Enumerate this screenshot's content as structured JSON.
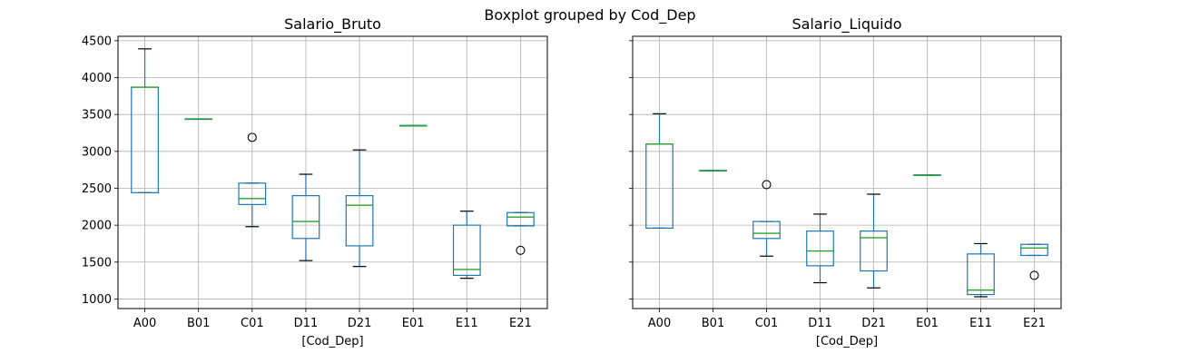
{
  "chart_data": {
    "type": "boxplot",
    "suptitle": "Boxplot grouped by Cod_Dep",
    "categories": [
      "A00",
      "B01",
      "C01",
      "D11",
      "D21",
      "E01",
      "E11",
      "E21"
    ],
    "ylim": [
      870,
      4560
    ],
    "yticks": [
      1000,
      1500,
      2000,
      2500,
      3000,
      3500,
      4000,
      4500
    ],
    "grid": true,
    "colors": {
      "box": "#1f77b4",
      "median": "#2ca02c",
      "whisker": "#1f77b4",
      "cap": "#000000",
      "flier": "#000000",
      "grid": "#b0b0b0"
    },
    "panels": [
      {
        "title": "Salario_Bruto",
        "xlabel": "[Cod_Dep]",
        "boxes": [
          {
            "category": "A00",
            "whislo": 2440,
            "q1": 2440,
            "med": 3870,
            "q3": 3870,
            "whishi": 4390,
            "fliers": []
          },
          {
            "category": "B01",
            "whislo": 3440,
            "q1": 3440,
            "med": 3440,
            "q3": 3440,
            "whishi": 3440,
            "fliers": []
          },
          {
            "category": "C01",
            "whislo": 1980,
            "q1": 2280,
            "med": 2360,
            "q3": 2570,
            "whishi": 2570,
            "fliers": [
              3190
            ]
          },
          {
            "category": "D11",
            "whislo": 1520,
            "q1": 1820,
            "med": 2050,
            "q3": 2400,
            "whishi": 2690,
            "fliers": []
          },
          {
            "category": "D21",
            "whislo": 1440,
            "q1": 1720,
            "med": 2270,
            "q3": 2400,
            "whishi": 3020,
            "fliers": []
          },
          {
            "category": "E01",
            "whislo": 3350,
            "q1": 3350,
            "med": 3350,
            "q3": 3350,
            "whishi": 3350,
            "fliers": []
          },
          {
            "category": "E11",
            "whislo": 1280,
            "q1": 1320,
            "med": 1400,
            "q3": 2000,
            "whishi": 2190,
            "fliers": []
          },
          {
            "category": "E21",
            "whislo": 1990,
            "q1": 1990,
            "med": 2110,
            "q3": 2170,
            "whishi": 2170,
            "fliers": [
              1660
            ]
          }
        ]
      },
      {
        "title": "Salario_Liquido",
        "xlabel": "[Cod_Dep]",
        "boxes": [
          {
            "category": "A00",
            "whislo": 1960,
            "q1": 1960,
            "med": 3100,
            "q3": 3100,
            "whishi": 3510,
            "fliers": []
          },
          {
            "category": "B01",
            "whislo": 2740,
            "q1": 2740,
            "med": 2740,
            "q3": 2740,
            "whishi": 2740,
            "fliers": []
          },
          {
            "category": "C01",
            "whislo": 1580,
            "q1": 1820,
            "med": 1890,
            "q3": 2050,
            "whishi": 2050,
            "fliers": [
              2550
            ]
          },
          {
            "category": "D11",
            "whislo": 1220,
            "q1": 1450,
            "med": 1650,
            "q3": 1920,
            "whishi": 2150,
            "fliers": []
          },
          {
            "category": "D21",
            "whislo": 1150,
            "q1": 1380,
            "med": 1830,
            "q3": 1920,
            "whishi": 2420,
            "fliers": []
          },
          {
            "category": "E01",
            "whislo": 2680,
            "q1": 2680,
            "med": 2680,
            "q3": 2680,
            "whishi": 2680,
            "fliers": []
          },
          {
            "category": "E11",
            "whislo": 1030,
            "q1": 1060,
            "med": 1120,
            "q3": 1610,
            "whishi": 1750,
            "fliers": []
          },
          {
            "category": "E21",
            "whislo": 1590,
            "q1": 1590,
            "med": 1690,
            "q3": 1740,
            "whishi": 1740,
            "fliers": [
              1320
            ]
          }
        ]
      }
    ]
  }
}
